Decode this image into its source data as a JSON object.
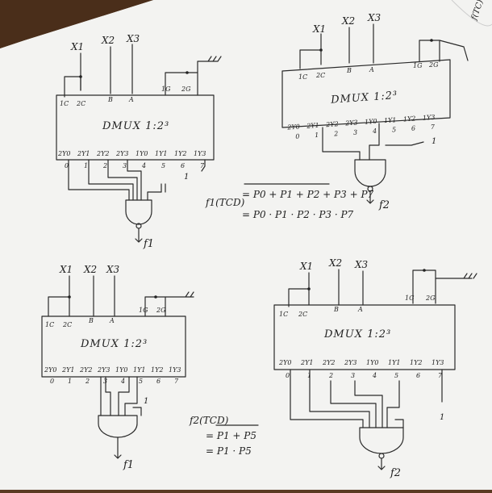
{
  "colors": {
    "paper": "#f3f3f1",
    "ink": "#2a2a2a",
    "desk": "#5a3a22"
  },
  "margin_note": "f(TC)",
  "circuits": [
    {
      "id": "tl",
      "inputs": [
        "X1",
        "X2",
        "X3"
      ],
      "control_pins": [
        "1C",
        "2C",
        "B",
        "A",
        "1G",
        "2G"
      ],
      "title": "DMUX 1:2³",
      "output_pins": [
        "2Y0",
        "2Y1",
        "2Y2",
        "2Y3",
        "1Y0",
        "1Y1",
        "1Y2",
        "1Y3"
      ],
      "output_numbers": [
        "0",
        "1",
        "2",
        "3",
        "4",
        "5",
        "6",
        "7"
      ],
      "gate_input": "1",
      "output": "f1"
    },
    {
      "id": "tr",
      "inputs": [
        "X1",
        "X2",
        "X3"
      ],
      "control_pins": [
        "1C",
        "2C",
        "B",
        "A",
        "1G",
        "2G"
      ],
      "title": "DMUX 1:2³",
      "output_pins": [
        "2Y0",
        "2Y1",
        "2Y2",
        "2Y3",
        "1Y0",
        "1Y1",
        "1Y2",
        "1Y3"
      ],
      "output_numbers": [
        "0",
        "1",
        "2",
        "3",
        "4",
        "5",
        "6",
        "7"
      ],
      "gate_input": "1",
      "output": "f2"
    },
    {
      "id": "bl",
      "inputs": [
        "X1",
        "X2",
        "X3"
      ],
      "control_pins": [
        "1C",
        "2C",
        "B",
        "A",
        "1G",
        "2G"
      ],
      "title": "DMUX 1:2³",
      "output_pins": [
        "2Y0",
        "2Y1",
        "2Y2",
        "2Y3",
        "1Y0",
        "1Y1",
        "1Y2",
        "1Y3"
      ],
      "output_numbers": [
        "0",
        "1",
        "2",
        "3",
        "4",
        "5",
        "6",
        "7"
      ],
      "gate_input": "1",
      "output": "f1"
    },
    {
      "id": "br",
      "inputs": [
        "X1",
        "X2",
        "X3"
      ],
      "control_pins": [
        "1C",
        "2C",
        "B",
        "A",
        "1G",
        "2G"
      ],
      "title": "DMUX 1:2³",
      "output_pins": [
        "2Y0",
        "2Y1",
        "2Y2",
        "2Y3",
        "1Y0",
        "1Y1",
        "1Y2",
        "1Y3"
      ],
      "output_numbers": [
        "0",
        "1",
        "2",
        "3",
        "4",
        "5",
        "6",
        "7"
      ],
      "gate_input": "1",
      "output": "f2"
    }
  ],
  "equations": [
    {
      "lhs": "f1(TCD)",
      "line1": "= P0 + P1 + P2 + P3 + P7",
      "line2": "= P0 · P1 · P2 · P3 · P7"
    },
    {
      "lhs": "f2(TCD)",
      "line1": "= P1 + P5",
      "line2": "= P1 · P5"
    }
  ]
}
